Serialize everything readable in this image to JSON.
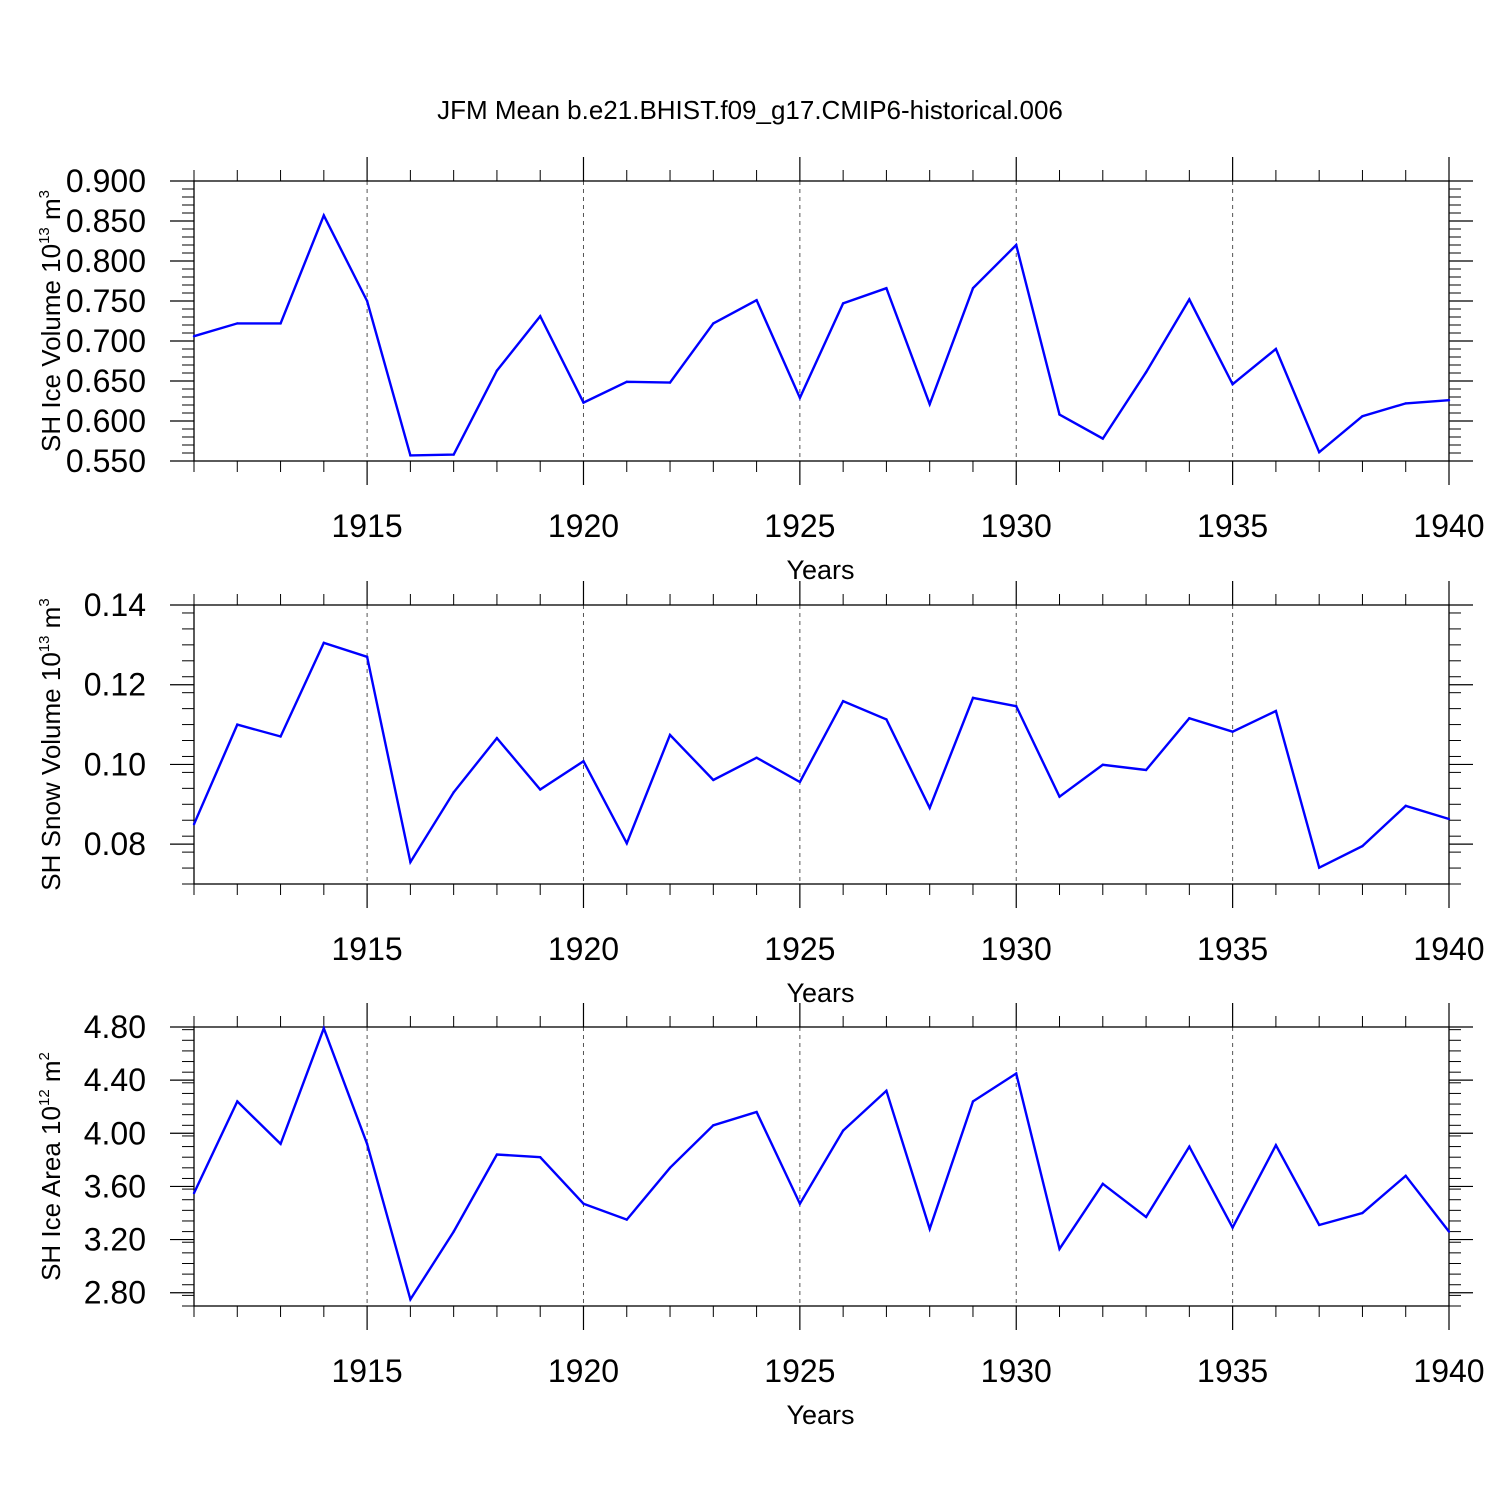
{
  "chart_data": {
    "title": "JFM Mean b.e21.BHIST.f09_g17.CMIP6-historical.006",
    "panels": [
      {
        "type": "line",
        "ylabel": {
          "text": "SH Ice Volume 10",
          "sup1": "13",
          "mid": " m",
          "sup2": "3"
        },
        "xlabel": "Years",
        "xlim": [
          1911,
          1940
        ],
        "xticks": [
          "1915",
          "1920",
          "1925",
          "1930",
          "1935",
          "1940"
        ],
        "ylim": [
          0.55,
          0.9
        ],
        "yticks": [
          "0.550",
          "0.600",
          "0.650",
          "0.700",
          "0.750",
          "0.800",
          "0.850",
          "0.900"
        ],
        "color": "#0000ff",
        "x": [
          1911,
          1912,
          1913,
          1914,
          1915,
          1916,
          1917,
          1918,
          1919,
          1920,
          1921,
          1922,
          1923,
          1924,
          1925,
          1926,
          1927,
          1928,
          1929,
          1930,
          1931,
          1932,
          1933,
          1934,
          1935,
          1936,
          1937,
          1938,
          1939,
          1940
        ],
        "y": [
          0.706,
          0.722,
          0.722,
          0.857,
          0.75,
          0.557,
          0.558,
          0.663,
          0.731,
          0.623,
          0.649,
          0.648,
          0.722,
          0.751,
          0.629,
          0.747,
          0.766,
          0.621,
          0.766,
          0.82,
          0.608,
          0.578,
          0.661,
          0.752,
          0.646,
          0.69,
          0.561,
          0.606,
          0.622,
          0.626
        ]
      },
      {
        "type": "line",
        "ylabel": {
          "text": "SH Snow Volume 10",
          "sup1": "13",
          "mid": " m",
          "sup2": "3"
        },
        "xlabel": "Years",
        "xlim": [
          1911,
          1940
        ],
        "xticks": [
          "1915",
          "1920",
          "1925",
          "1930",
          "1935",
          "1940"
        ],
        "ylim": [
          0.07,
          0.14
        ],
        "yticks": [
          "0.08",
          "0.10",
          "0.12",
          "0.14"
        ],
        "color": "#0000ff",
        "x": [
          1911,
          1912,
          1913,
          1914,
          1915,
          1916,
          1917,
          1918,
          1919,
          1920,
          1921,
          1922,
          1923,
          1924,
          1925,
          1926,
          1927,
          1928,
          1929,
          1930,
          1931,
          1932,
          1933,
          1934,
          1935,
          1936,
          1937,
          1938,
          1939,
          1940
        ],
        "y": [
          0.085,
          0.11,
          0.107,
          0.1305,
          0.127,
          0.0755,
          0.093,
          0.1066,
          0.0937,
          0.1008,
          0.0802,
          0.1074,
          0.0961,
          0.1017,
          0.0956,
          0.1159,
          0.1113,
          0.0891,
          0.1167,
          0.1146,
          0.0919,
          0.0999,
          0.0986,
          0.1116,
          0.1082,
          0.1134,
          0.0741,
          0.0795,
          0.0896,
          0.0863
        ]
      },
      {
        "type": "line",
        "ylabel": {
          "text": "SH Ice Area 10",
          "sup1": "12",
          "mid": " m",
          "sup2": "2"
        },
        "xlabel": "Years",
        "xlim": [
          1911,
          1940
        ],
        "xticks": [
          "1915",
          "1920",
          "1925",
          "1930",
          "1935",
          "1940"
        ],
        "ylim": [
          2.7,
          4.8
        ],
        "yticks": [
          "2.80",
          "3.20",
          "3.60",
          "4.00",
          "4.40",
          "4.80"
        ],
        "color": "#0000ff",
        "x": [
          1911,
          1912,
          1913,
          1914,
          1915,
          1916,
          1917,
          1918,
          1919,
          1920,
          1921,
          1922,
          1923,
          1924,
          1925,
          1926,
          1927,
          1928,
          1929,
          1930,
          1931,
          1932,
          1933,
          1934,
          1935,
          1936,
          1937,
          1938,
          1939,
          1940
        ],
        "y": [
          3.55,
          4.24,
          3.92,
          4.79,
          3.92,
          2.75,
          3.26,
          3.84,
          3.82,
          3.47,
          3.35,
          3.74,
          4.06,
          4.16,
          3.47,
          4.02,
          4.32,
          3.28,
          4.24,
          4.45,
          3.13,
          3.62,
          3.37,
          3.9,
          3.29,
          3.91,
          3.31,
          3.4,
          3.68,
          3.26
        ]
      }
    ]
  }
}
